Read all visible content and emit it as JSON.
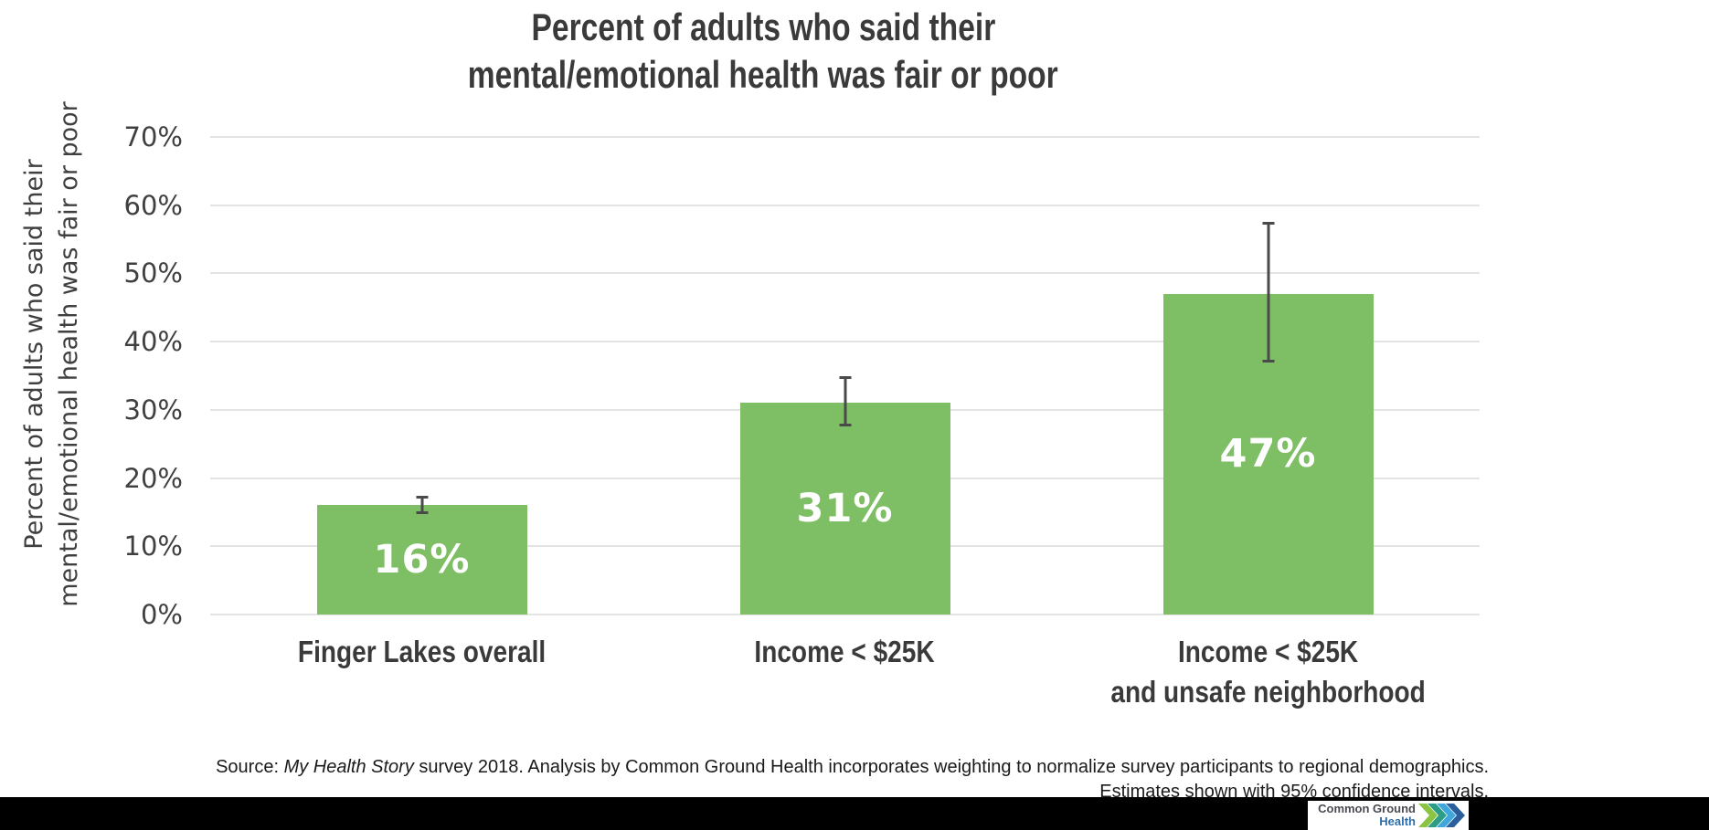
{
  "title": {
    "line1": "Percent of adults who said their",
    "line2": "mental/emotional health was fair or poor"
  },
  "y_axis_title": {
    "line1": "Percent of adults who said their",
    "line2": "mental/emotional health was fair or poor"
  },
  "chart_data": {
    "type": "bar",
    "title": "Percent of adults who said their mental/emotional health was fair or poor",
    "ylabel": "Percent of adults who said their mental/emotional health was fair or poor",
    "xlabel": "",
    "categories": [
      "Finger Lakes overall",
      "Income < $25K",
      "Income < $25K\nand unsafe neighborhood"
    ],
    "values": [
      16,
      31,
      47
    ],
    "bar_labels": [
      "16%",
      "31%",
      "47%"
    ],
    "error_bars_95ci": [
      [
        14.7,
        17.4
      ],
      [
        27.6,
        34.9
      ],
      [
        36.9,
        57.6
      ]
    ],
    "ylim": [
      0,
      70
    ],
    "ytick_step": 10,
    "ytick_labels": [
      "70%",
      "60%",
      "50%",
      "40%",
      "30%",
      "20%",
      "10%",
      "0%"
    ],
    "grid": true,
    "legend": false,
    "bar_color": "#7ebe64",
    "error_bar_color": "#4a4a4a",
    "gridline_color": "#e4e4e4"
  },
  "source": {
    "line1_prefix": "Source: ",
    "line1_italic": "My Health Story",
    "line1_rest": " survey 2018. Analysis by Common Ground Health incorporates weighting to normalize survey participants to regional demographics.",
    "line2": "Estimates shown with 95% confidence intervals."
  },
  "logo": {
    "line1": "Common Ground",
    "line2": "Health",
    "chevron_colors": [
      "#8cc341",
      "#2c9e85",
      "#3fa7dc",
      "#2a5f9c"
    ]
  }
}
